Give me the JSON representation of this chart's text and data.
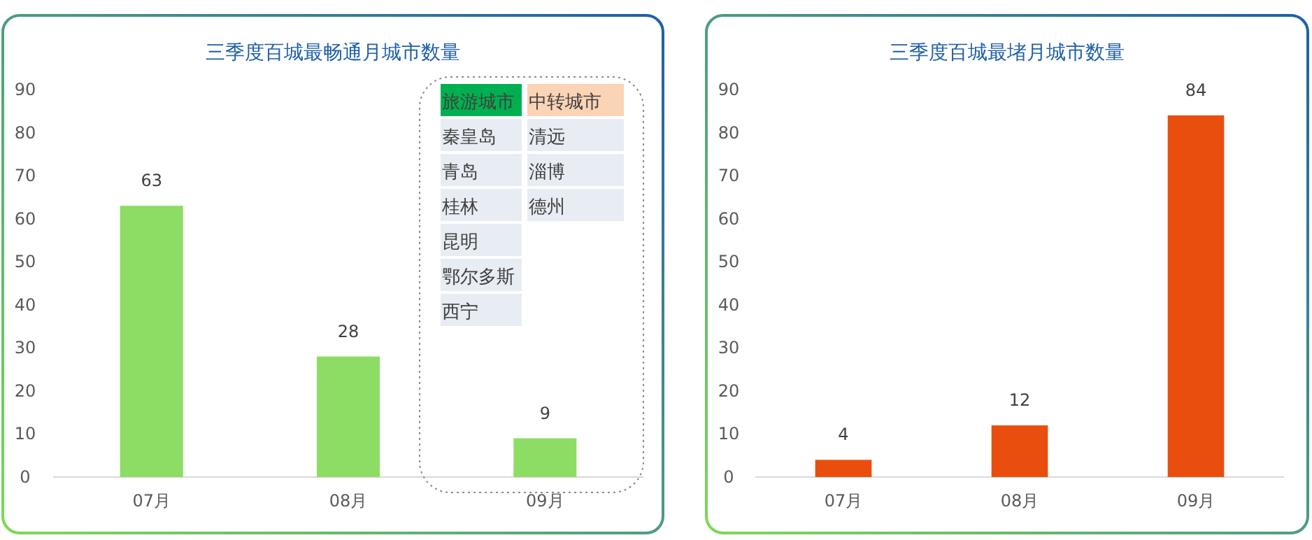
{
  "chart_data": [
    {
      "type": "bar",
      "title": "三季度百城最畅通月城市数量",
      "categories": [
        "07月",
        "08月",
        "09月"
      ],
      "values": [
        63,
        28,
        9
      ],
      "color": "#8ddc63",
      "ylim": [
        0,
        90
      ],
      "yticks": [
        0,
        10,
        20,
        30,
        40,
        50,
        60,
        70,
        80,
        90
      ],
      "data_labels": true,
      "annotations": [
        "旅游城市",
        "中转城市",
        "秦皇岛",
        "清远",
        "青岛",
        "淄博",
        "桂林",
        "德州",
        "昆明",
        "鄂尔多斯",
        "西宁"
      ]
    },
    {
      "type": "bar",
      "title": "三季度百城最堵月城市数量",
      "categories": [
        "07月",
        "08月",
        "09月"
      ],
      "values": [
        4,
        12,
        84
      ],
      "color": "#e94e0f",
      "ylim": [
        0,
        90
      ],
      "yticks": [
        0,
        10,
        20,
        30,
        40,
        50,
        60,
        70,
        80,
        90
      ],
      "data_labels": true
    }
  ]
}
